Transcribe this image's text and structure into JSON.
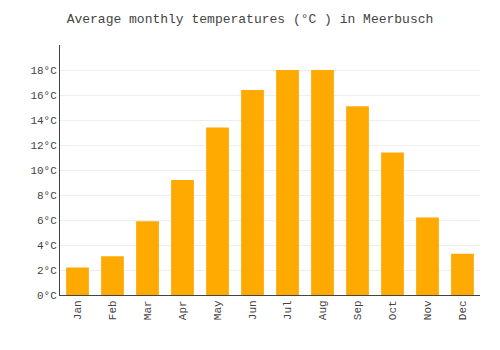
{
  "chart_data": {
    "type": "bar",
    "title": "Average monthly temperatures (°C ) in Meerbusch",
    "categories": [
      "Jan",
      "Feb",
      "Mar",
      "Apr",
      "May",
      "Jun",
      "Jul",
      "Aug",
      "Sep",
      "Oct",
      "Nov",
      "Dec"
    ],
    "values": [
      2.2,
      3.1,
      5.9,
      9.2,
      13.4,
      16.4,
      18.0,
      18.0,
      15.1,
      11.4,
      6.2,
      3.3
    ],
    "color": "#FFAA00",
    "ylim": [
      0,
      20
    ],
    "yticks": [
      {
        "value": 0,
        "label": "0°C"
      },
      {
        "value": 2,
        "label": "2°C"
      },
      {
        "value": 4,
        "label": "4°C"
      },
      {
        "value": 6,
        "label": "6°C"
      },
      {
        "value": 8,
        "label": "8°C"
      },
      {
        "value": 10,
        "label": "10°C"
      },
      {
        "value": 12,
        "label": "12°C"
      },
      {
        "value": 14,
        "label": "14°C"
      },
      {
        "value": 16,
        "label": "16°C"
      },
      {
        "value": 18,
        "label": "18°C"
      }
    ],
    "grid": true
  }
}
